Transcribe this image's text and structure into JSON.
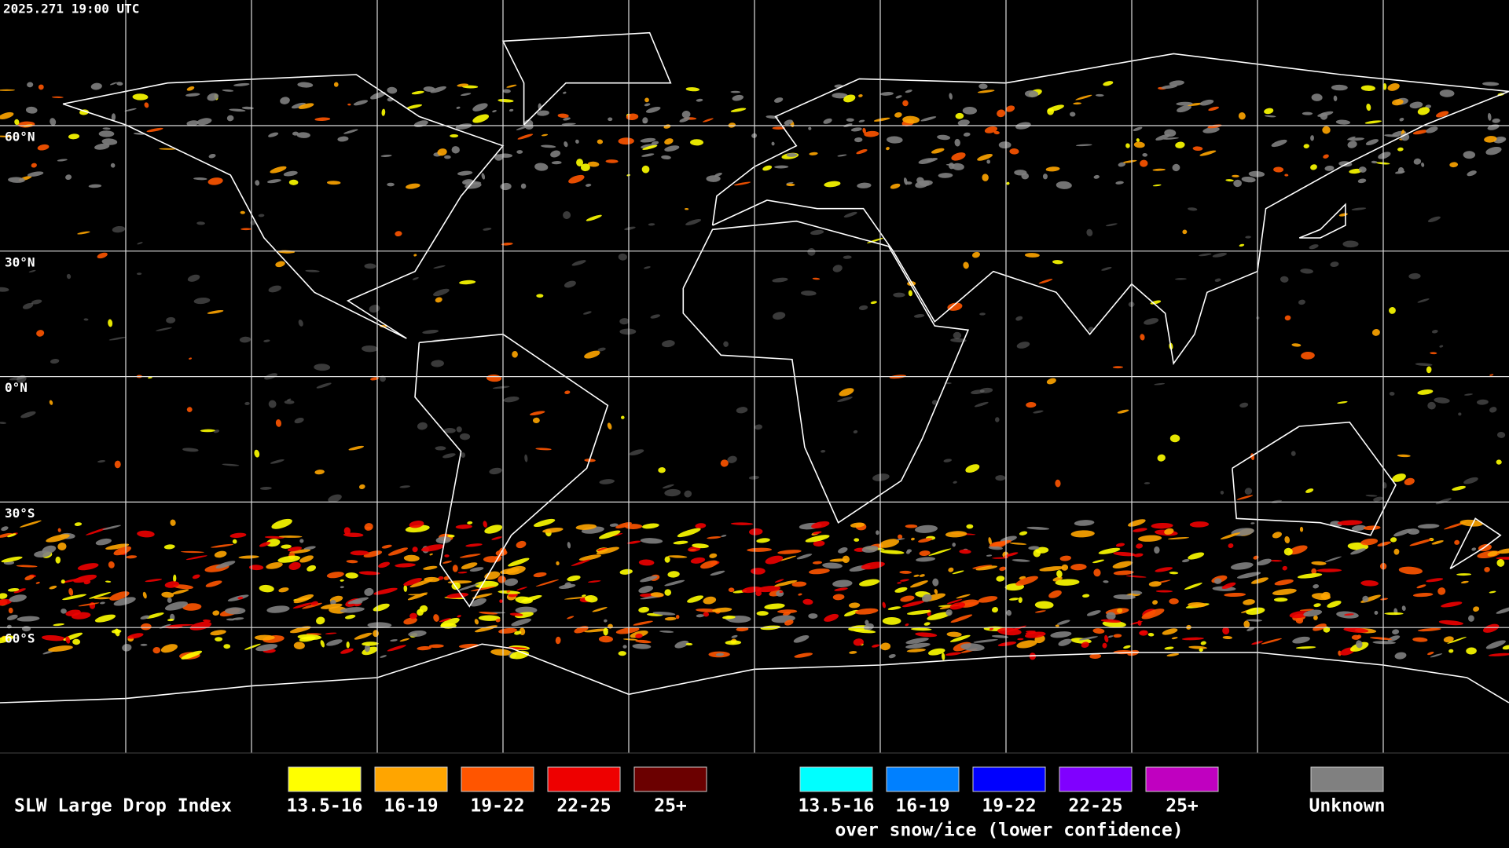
{
  "header": {
    "timestamp": "2025.271 19:00 UTC"
  },
  "map": {
    "latitude_labels": [
      "60°N",
      "30°N",
      "0°N",
      "30°S",
      "60°S"
    ]
  },
  "legend": {
    "title": "SLW Large Drop Index",
    "groups": [
      {
        "items": [
          {
            "label": "13.5-16",
            "color": "#ffff00"
          },
          {
            "label": "16-19",
            "color": "#ffa500"
          },
          {
            "label": "19-22",
            "color": "#ff5500"
          },
          {
            "label": "22-25",
            "color": "#ee0000"
          },
          {
            "label": "25+",
            "color": "#6b0000"
          }
        ]
      },
      {
        "subtitle": "over snow/ice (lower confidence)",
        "items": [
          {
            "label": "13.5-16",
            "color": "#00ffff"
          },
          {
            "label": "16-19",
            "color": "#0080ff"
          },
          {
            "label": "19-22",
            "color": "#0000ff"
          },
          {
            "label": "22-25",
            "color": "#8000ff"
          },
          {
            "label": "25+",
            "color": "#c000c0"
          }
        ]
      },
      {
        "items": [
          {
            "label": "Unknown",
            "color": "#808080"
          }
        ]
      }
    ]
  }
}
